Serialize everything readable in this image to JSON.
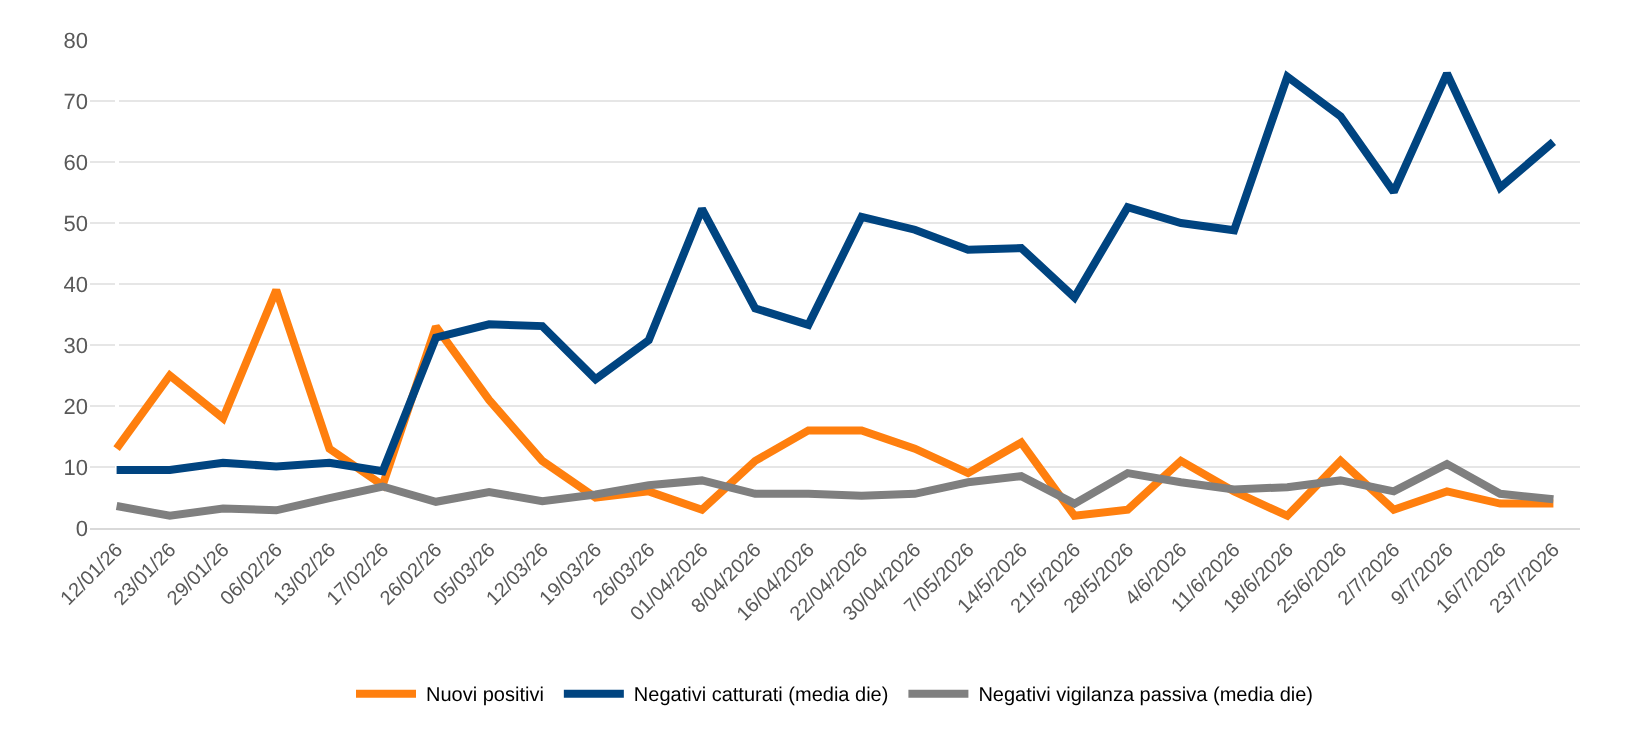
{
  "chart_data": {
    "type": "line",
    "categories": [
      "12/01/26",
      "23/01/26",
      "29/01/26",
      "06/02/26",
      "13/02/26",
      "17/02/26",
      "26/02/26",
      "05/03/26",
      "12/03/26",
      "19/03/26",
      "26/03/26",
      "01/04/2026",
      "8/04/2026",
      "16/04/2026",
      "22/04/2026",
      "30/04/2026",
      "7/05/2026",
      "14/5/2026",
      "21/5/2026",
      "28/5/2026",
      "4/6/2026",
      "11/6/2026",
      "18/6/2026",
      "25/6/2026",
      "2/7/2026",
      "9/7/2026",
      "16/7/2026",
      "23/7/2026"
    ],
    "series": [
      {
        "name": "Nuovi positivi",
        "color": "#ff7f0e",
        "values": [
          13,
          25,
          18,
          39,
          13,
          7,
          33,
          21,
          11,
          5,
          6,
          3,
          11,
          16,
          16,
          13,
          9,
          14,
          2,
          3,
          11,
          6,
          2,
          11,
          3,
          6,
          4,
          4
        ]
      },
      {
        "name": "Negativi catturati (media die)",
        "color": "#004480",
        "values": [
          9.5,
          9.5,
          10.7,
          10.1,
          10.7,
          9.3,
          31.2,
          33.4,
          33.1,
          24.4,
          30.8,
          52.3,
          36,
          33.3,
          51,
          48.9,
          45.6,
          45.9,
          37.8,
          52.6,
          50,
          48.8,
          74,
          67.5,
          55.1,
          74.5,
          55.8,
          63.3
        ]
      },
      {
        "name": "Negativi vigilanza passiva (media die)",
        "color": "#7f7f7f",
        "values": [
          3.6,
          2,
          3.2,
          2.9,
          4.9,
          6.8,
          4.3,
          5.9,
          4.4,
          5.5,
          7,
          7.8,
          5.6,
          5.6,
          5.3,
          5.6,
          7.5,
          8.5,
          4,
          9,
          7.5,
          6.3,
          6.7,
          7.8,
          6,
          10.5,
          5.6,
          4.7
        ]
      }
    ],
    "ylim": [
      0,
      80
    ],
    "yticks": [
      0,
      10,
      20,
      30,
      40,
      50,
      60,
      70,
      80
    ],
    "grid": "y",
    "legend": "bottom",
    "marker": "none",
    "line_style": "solid"
  }
}
